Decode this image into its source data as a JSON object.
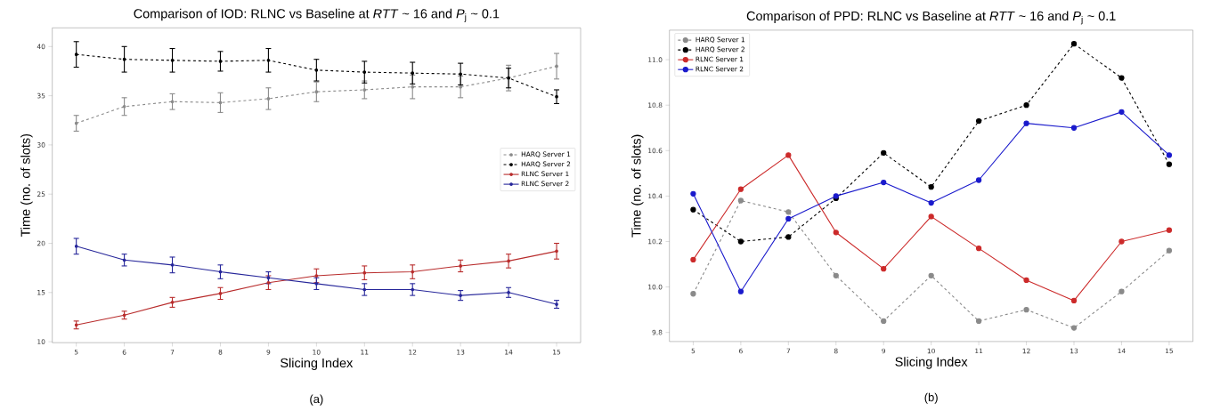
{
  "chart_data": [
    {
      "type": "line",
      "title": "Comparison of IOD: RLNC vs Baseline at *RTT* ~ 16 and *P*$_{j}$ ~ 0.1",
      "xlabel": "Slicing Index",
      "ylabel": "Time (no. of slots)",
      "annotations": [
        "(a)"
      ],
      "x": [
        5,
        6,
        7,
        8,
        9,
        10,
        11,
        12,
        13,
        14,
        15
      ],
      "xlim": [
        4.5,
        15.5
      ],
      "xticks": [
        5,
        6,
        7,
        8,
        9,
        10,
        11,
        12,
        13,
        14,
        15
      ],
      "ylim": [
        9.9,
        41.9
      ],
      "yticks": [
        10,
        15,
        20,
        25,
        30,
        35,
        40
      ],
      "grid": false,
      "legend": "right",
      "marker": "circle",
      "series": [
        {
          "name": "HARQ Server 1",
          "color": "#8a8a8a",
          "line_style": "dashed",
          "values": [
            32.2,
            33.9,
            34.4,
            34.3,
            34.7,
            35.4,
            35.6,
            35.9,
            35.9,
            36.8,
            38.0
          ],
          "errors": [
            0.8,
            0.9,
            0.8,
            1.0,
            1.1,
            1.0,
            0.9,
            1.2,
            1.1,
            1.3,
            1.3
          ]
        },
        {
          "name": "HARQ Server 2",
          "color": "#000000",
          "line_style": "dashed",
          "values": [
            39.2,
            38.7,
            38.6,
            38.5,
            38.6,
            37.6,
            37.4,
            37.3,
            37.2,
            36.8,
            34.9
          ],
          "errors": [
            1.3,
            1.3,
            1.2,
            1.0,
            1.2,
            1.1,
            1.1,
            1.1,
            1.1,
            1.0,
            0.7
          ]
        },
        {
          "name": "RLNC Server 1",
          "color": "#b82c2c",
          "line_style": "solid",
          "values": [
            11.7,
            12.7,
            14.0,
            14.9,
            16.0,
            16.7,
            17.0,
            17.1,
            17.7,
            18.2,
            19.2
          ],
          "errors": [
            0.4,
            0.4,
            0.5,
            0.6,
            0.7,
            0.7,
            0.7,
            0.7,
            0.6,
            0.7,
            0.8
          ]
        },
        {
          "name": "RLNC Server 2",
          "color": "#26269a",
          "line_style": "solid",
          "values": [
            19.7,
            18.3,
            17.8,
            17.1,
            16.5,
            15.9,
            15.3,
            15.3,
            14.7,
            15.0,
            13.8
          ],
          "errors": [
            0.8,
            0.6,
            0.8,
            0.7,
            0.6,
            0.6,
            0.6,
            0.6,
            0.5,
            0.5,
            0.4
          ]
        }
      ]
    },
    {
      "type": "line",
      "title": "Comparison of PPD: RLNC vs Baseline at *RTT* ~ 16 and *P*$_{j}$ ~ 0.1",
      "xlabel": "Slicing Index",
      "ylabel": "Time (no. of slots)",
      "annotations": [
        "(b)"
      ],
      "x": [
        5,
        6,
        7,
        8,
        9,
        10,
        11,
        12,
        13,
        14,
        15
      ],
      "xlim": [
        4.5,
        15.5
      ],
      "xticks": [
        5,
        6,
        7,
        8,
        9,
        10,
        11,
        12,
        13,
        14,
        15
      ],
      "ylim": [
        9.76,
        11.13
      ],
      "yticks": [
        9.8,
        {
          "value": 10,
          "label": "10.0"
        },
        10.2,
        10.4,
        10.6,
        10.8,
        {
          "value": 11,
          "label": "11.0"
        }
      ],
      "grid": false,
      "legend": "top left",
      "marker": "circle",
      "series": [
        {
          "name": "HARQ Server 1",
          "color": "#8a8a8a",
          "line_style": "dashed",
          "values": [
            9.97,
            10.38,
            10.33,
            10.05,
            9.85,
            10.05,
            9.85,
            9.9,
            9.82,
            9.98,
            10.16
          ]
        },
        {
          "name": "HARQ Server 2",
          "color": "#000000",
          "line_style": "dashed",
          "values": [
            10.34,
            10.2,
            10.22,
            10.39,
            10.59,
            10.44,
            10.73,
            10.8,
            11.07,
            10.92,
            10.54
          ]
        },
        {
          "name": "RLNC Server 1",
          "color": "#cc2a2a",
          "line_style": "solid",
          "values": [
            10.12,
            10.43,
            10.58,
            10.24,
            10.08,
            10.31,
            10.17,
            10.03,
            9.94,
            10.2,
            10.25
          ]
        },
        {
          "name": "RLNC Server 2",
          "color": "#1a1acc",
          "line_style": "solid",
          "values": [
            10.41,
            9.98,
            10.3,
            10.4,
            10.46,
            10.37,
            10.47,
            10.72,
            10.7,
            10.77,
            10.58
          ]
        }
      ]
    }
  ]
}
